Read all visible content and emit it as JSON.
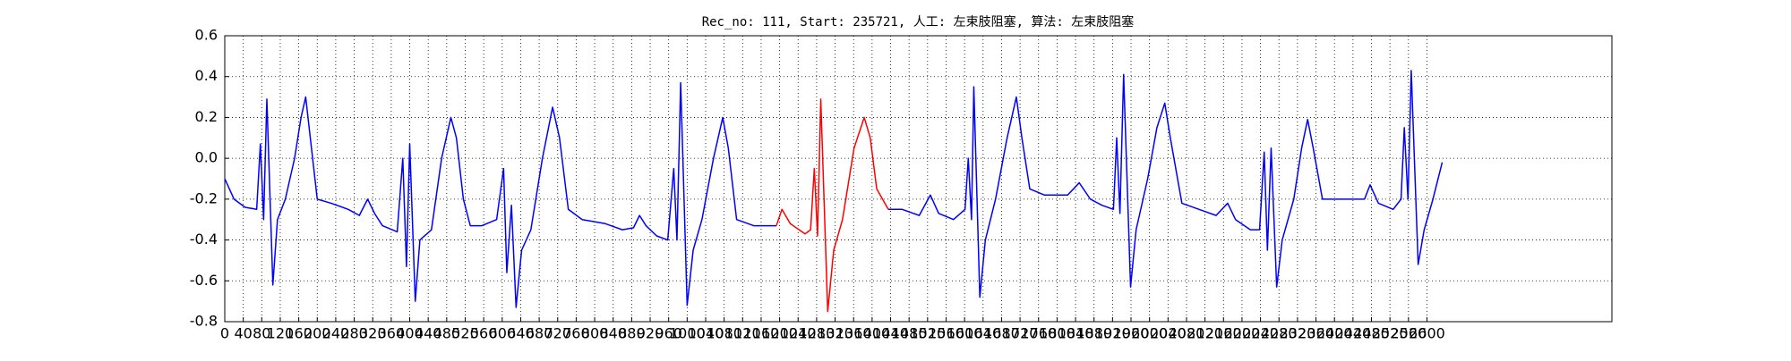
{
  "chart_data": {
    "type": "line",
    "title": "Rec_no: 111, Start: 235721, 人工: 左束肢阻塞, 算法: 左束肢阻塞",
    "series": [
      {
        "color": "#0000ff",
        "x": [
          0,
          20,
          44,
          69,
          77,
          84,
          91,
          104,
          114,
          131,
          151,
          165,
          175,
          185,
          200,
          230,
          267,
          291,
          309,
          324,
          341,
          373,
          385,
          393,
          400,
          412,
          422,
          447,
          469,
          489,
          501,
          516,
          531,
          556,
          588,
          603,
          610,
          620,
          630,
          642,
          662,
          687,
          709,
          724,
          743,
          773,
          823,
          860,
          884,
          897,
          911,
          934,
          958,
          971,
          978,
          986,
          1000,
          1013,
          1032,
          1057,
          1077,
          1089,
          1107,
          1144,
          1193,
          1300,
          1435,
          1465,
          1502,
          1526,
          1544,
          1576,
          1601,
          1608,
          1615,
          1620,
          1633,
          1645,
          1667,
          1692,
          1712,
          1724,
          1741,
          1773,
          1823,
          1848,
          1872,
          1897,
          1922,
          1929,
          1936,
          1944,
          1959,
          1971,
          1996,
          2016,
          2033,
          2045,
          2070,
          2107,
          2144,
          2169,
          2186,
          2218,
          2238,
          2248,
          2255,
          2263,
          2275,
          2287,
          2312,
          2329,
          2342,
          2354,
          2374,
          2403,
          2440,
          2465,
          2477,
          2495,
          2527,
          2544,
          2551,
          2559,
          2566,
          2581,
          2594,
          2613,
          2633
        ],
        "values": [
          -0.1,
          -0.2,
          -0.24,
          -0.25,
          0.07,
          -0.3,
          0.29,
          -0.62,
          -0.3,
          -0.2,
          0.0,
          0.2,
          0.3,
          0.1,
          -0.2,
          -0.22,
          -0.25,
          -0.28,
          -0.2,
          -0.27,
          -0.33,
          -0.36,
          0.0,
          -0.53,
          0.07,
          -0.7,
          -0.4,
          -0.35,
          0.0,
          0.2,
          0.1,
          -0.2,
          -0.33,
          -0.33,
          -0.3,
          -0.05,
          -0.56,
          -0.23,
          -0.73,
          -0.45,
          -0.35,
          0.0,
          0.25,
          0.1,
          -0.25,
          -0.3,
          -0.32,
          -0.35,
          -0.34,
          -0.28,
          -0.33,
          -0.38,
          -0.4,
          -0.05,
          -0.4,
          0.37,
          -0.72,
          -0.45,
          -0.3,
          0.0,
          0.2,
          0.05,
          -0.3,
          -0.33,
          -0.33,
          null,
          -0.25,
          -0.25,
          -0.28,
          -0.18,
          -0.27,
          -0.3,
          -0.25,
          0.0,
          -0.3,
          0.35,
          -0.68,
          -0.4,
          -0.2,
          0.1,
          0.3,
          0.1,
          -0.15,
          -0.18,
          -0.18,
          -0.12,
          -0.2,
          -0.23,
          -0.25,
          0.1,
          -0.27,
          0.41,
          -0.63,
          -0.35,
          -0.1,
          0.15,
          0.27,
          0.1,
          -0.22,
          -0.25,
          -0.28,
          -0.22,
          -0.3,
          -0.35,
          -0.35,
          0.03,
          -0.45,
          0.05,
          -0.63,
          -0.4,
          -0.2,
          0.05,
          0.19,
          0.05,
          -0.2,
          -0.2,
          -0.2,
          -0.2,
          -0.13,
          -0.22,
          -0.25,
          -0.2,
          0.15,
          -0.2,
          0.43,
          -0.52,
          -0.35,
          -0.2,
          -0.02
        ]
      },
      {
        "color": "#ff0000",
        "x": [
          1193,
          1205,
          1223,
          1255,
          1267,
          1275,
          1282,
          1289,
          1304,
          1317,
          1336,
          1361,
          1383,
          1396,
          1410,
          1435
        ],
        "values": [
          -0.33,
          -0.25,
          -0.32,
          -0.37,
          -0.35,
          -0.05,
          -0.38,
          0.29,
          -0.75,
          -0.45,
          -0.3,
          0.05,
          0.2,
          0.1,
          -0.15,
          -0.25
        ]
      }
    ],
    "xlim": [
      0,
      3000
    ],
    "xticks": [
      0,
      40,
      80,
      120,
      160,
      200,
      240,
      280,
      320,
      360,
      400,
      440,
      480,
      520,
      560,
      600,
      640,
      680,
      720,
      760,
      800,
      840,
      880,
      920,
      960,
      1000,
      1040,
      1080,
      1120,
      1160,
      1200,
      1240,
      1280,
      1320,
      1360,
      1400,
      1440,
      1480,
      1520,
      1560,
      1600,
      1640,
      1680,
      1720,
      1760,
      1800,
      1840,
      1880,
      1920,
      1960,
      2000,
      2040,
      2080,
      2120,
      2160,
      2200,
      2240,
      2280,
      2320,
      2360,
      2400,
      2440,
      2480,
      2520,
      2560,
      2600
    ],
    "ylim": [
      -0.8,
      0.6
    ],
    "yticks": [
      -0.8,
      -0.6,
      -0.4,
      -0.2,
      {
        "value": 0,
        "label": "0.0"
      },
      0.2,
      0.4,
      0.6
    ],
    "grid": true
  }
}
